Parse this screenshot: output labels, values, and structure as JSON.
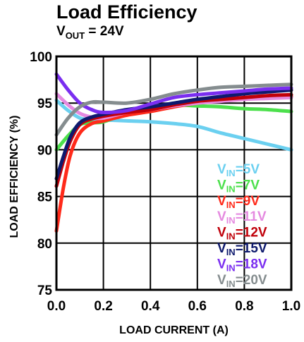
{
  "title": "Load Efficiency",
  "subtitle": {
    "prefix": "V",
    "sub": "OUT",
    "suffix": " = 24V"
  },
  "chart_data": {
    "type": "line",
    "xlabel": "LOAD CURRENT (A)",
    "ylabel": "LOAD EFFICIENCY (%)",
    "xlim": [
      0.0,
      1.0
    ],
    "ylim": [
      75,
      100
    ],
    "xticks": [
      "0.0",
      "0.2",
      "0.4",
      "0.6",
      "0.8",
      "1.0"
    ],
    "yticks": [
      "75",
      "80",
      "85",
      "90",
      "95",
      "100"
    ],
    "grid": true,
    "legend_position": "lower-right",
    "series": [
      {
        "name": "V_IN=5V",
        "label_prefix": "V",
        "label_sub": "IN",
        "label_suffix": "=5V",
        "color": "#6bd0f0",
        "x": [
          0.0,
          0.05,
          0.1,
          0.15,
          0.2,
          0.3,
          0.4,
          0.5,
          0.6,
          0.7,
          0.8,
          0.9,
          1.0
        ],
        "y": [
          95.3,
          94.2,
          93.4,
          93.2,
          93.2,
          93.1,
          93.0,
          92.8,
          92.5,
          91.8,
          91.2,
          90.6,
          90.0
        ]
      },
      {
        "name": "V_IN=7V",
        "label_prefix": "V",
        "label_sub": "IN",
        "label_suffix": "=7V",
        "color": "#4ce04c",
        "x": [
          0.0,
          0.05,
          0.1,
          0.15,
          0.2,
          0.3,
          0.4,
          0.5,
          0.6,
          0.7,
          0.8,
          0.9,
          1.0
        ],
        "y": [
          90.0,
          91.5,
          92.7,
          92.9,
          93.0,
          93.9,
          94.6,
          94.8,
          94.7,
          94.6,
          94.4,
          94.3,
          94.1
        ]
      },
      {
        "name": "V_IN=9V",
        "label_prefix": "V",
        "label_sub": "IN",
        "label_suffix": "=9V",
        "color": "#ff2a1a",
        "x": [
          0.0,
          0.03,
          0.06,
          0.1,
          0.15,
          0.2,
          0.3,
          0.4,
          0.5,
          0.6,
          0.7,
          0.8,
          0.9,
          1.0
        ],
        "y": [
          81.3,
          86.0,
          89.5,
          91.8,
          92.8,
          93.1,
          93.7,
          94.1,
          94.6,
          95.0,
          95.3,
          95.5,
          95.6,
          95.7
        ]
      },
      {
        "name": "V_IN=11V",
        "label_prefix": "V",
        "label_sub": "IN",
        "label_suffix": "=11V",
        "color": "#e58ae0",
        "x": [
          0.0,
          0.05,
          0.1,
          0.15,
          0.2,
          0.3,
          0.4,
          0.5,
          0.6,
          0.7,
          0.8,
          0.9,
          1.0
        ],
        "y": [
          96.0,
          94.8,
          93.9,
          93.5,
          93.4,
          94.0,
          94.3,
          94.7,
          95.0,
          95.2,
          95.4,
          95.5,
          95.6
        ]
      },
      {
        "name": "V_IN=12V",
        "label_prefix": "V",
        "label_sub": "IN",
        "label_suffix": "=12V",
        "color": "#c0000a",
        "x": [
          0.0,
          0.03,
          0.06,
          0.1,
          0.15,
          0.2,
          0.3,
          0.4,
          0.5,
          0.6,
          0.7,
          0.8,
          0.9,
          1.0
        ],
        "y": [
          86.1,
          88.8,
          91.0,
          92.7,
          93.3,
          93.6,
          94.0,
          94.3,
          94.8,
          95.2,
          95.4,
          95.6,
          95.8,
          95.9
        ]
      },
      {
        "name": "V_IN=15V",
        "label_prefix": "V",
        "label_sub": "IN",
        "label_suffix": "=15V",
        "color": "#0e1a6e",
        "x": [
          0.0,
          0.03,
          0.06,
          0.1,
          0.15,
          0.2,
          0.3,
          0.4,
          0.5,
          0.6,
          0.7,
          0.8,
          0.9,
          1.0
        ],
        "y": [
          86.9,
          89.3,
          91.4,
          92.9,
          93.5,
          93.8,
          94.3,
          94.6,
          95.0,
          95.4,
          95.7,
          96.0,
          96.2,
          96.4
        ]
      },
      {
        "name": "V_IN=18V",
        "label_prefix": "V",
        "label_sub": "IN",
        "label_suffix": "=18V",
        "color": "#7a2ef0",
        "x": [
          0.0,
          0.05,
          0.1,
          0.15,
          0.2,
          0.3,
          0.4,
          0.5,
          0.6,
          0.7,
          0.8,
          0.9,
          1.0
        ],
        "y": [
          98.1,
          96.4,
          95.0,
          94.3,
          94.0,
          94.2,
          94.9,
          95.6,
          95.9,
          96.1,
          96.3,
          96.5,
          96.6
        ]
      },
      {
        "name": "V_IN=20V",
        "label_prefix": "V",
        "label_sub": "IN",
        "label_suffix": "=20V",
        "color": "#858d8f",
        "x": [
          0.0,
          0.05,
          0.1,
          0.15,
          0.2,
          0.3,
          0.4,
          0.5,
          0.6,
          0.7,
          0.8,
          0.9,
          1.0
        ],
        "y": [
          91.6,
          93.4,
          94.6,
          95.1,
          95.1,
          95.0,
          95.4,
          96.0,
          96.4,
          96.7,
          96.8,
          96.9,
          97.0
        ]
      }
    ]
  }
}
